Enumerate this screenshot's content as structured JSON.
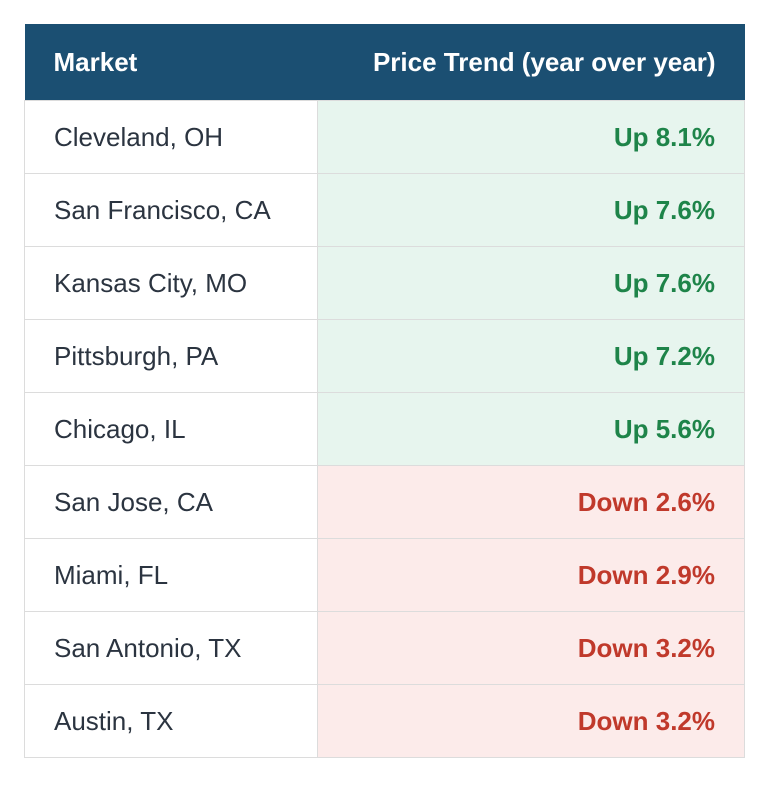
{
  "chart_data": {
    "type": "table",
    "columns": [
      "Market",
      "Price Trend (year over year)"
    ],
    "rows": [
      {
        "market": "Cleveland, OH",
        "trend": "Up 8.1%",
        "direction": "up",
        "value": 8.1
      },
      {
        "market": "San Francisco, CA",
        "trend": "Up 7.6%",
        "direction": "up",
        "value": 7.6
      },
      {
        "market": "Kansas City, MO",
        "trend": "Up 7.6%",
        "direction": "up",
        "value": 7.6
      },
      {
        "market": "Pittsburgh, PA",
        "trend": "Up 7.2%",
        "direction": "up",
        "value": 7.2
      },
      {
        "market": "Chicago, IL",
        "trend": "Up 5.6%",
        "direction": "up",
        "value": 5.6
      },
      {
        "market": "San Jose, CA",
        "trend": "Down 2.6%",
        "direction": "down",
        "value": -2.6
      },
      {
        "market": "Miami, FL",
        "trend": "Down 2.9%",
        "direction": "down",
        "value": -2.9
      },
      {
        "market": "San Antonio, TX",
        "trend": "Down 3.2%",
        "direction": "down",
        "value": -3.2
      },
      {
        "market": "Austin, TX",
        "trend": "Down 3.2%",
        "direction": "down",
        "value": -3.2
      }
    ],
    "colors": {
      "header_bg": "#1b4f72",
      "up_text": "#1e8449",
      "up_bg": "#e7f5ee",
      "down_text": "#c0392b",
      "down_bg": "#fcebea"
    }
  }
}
